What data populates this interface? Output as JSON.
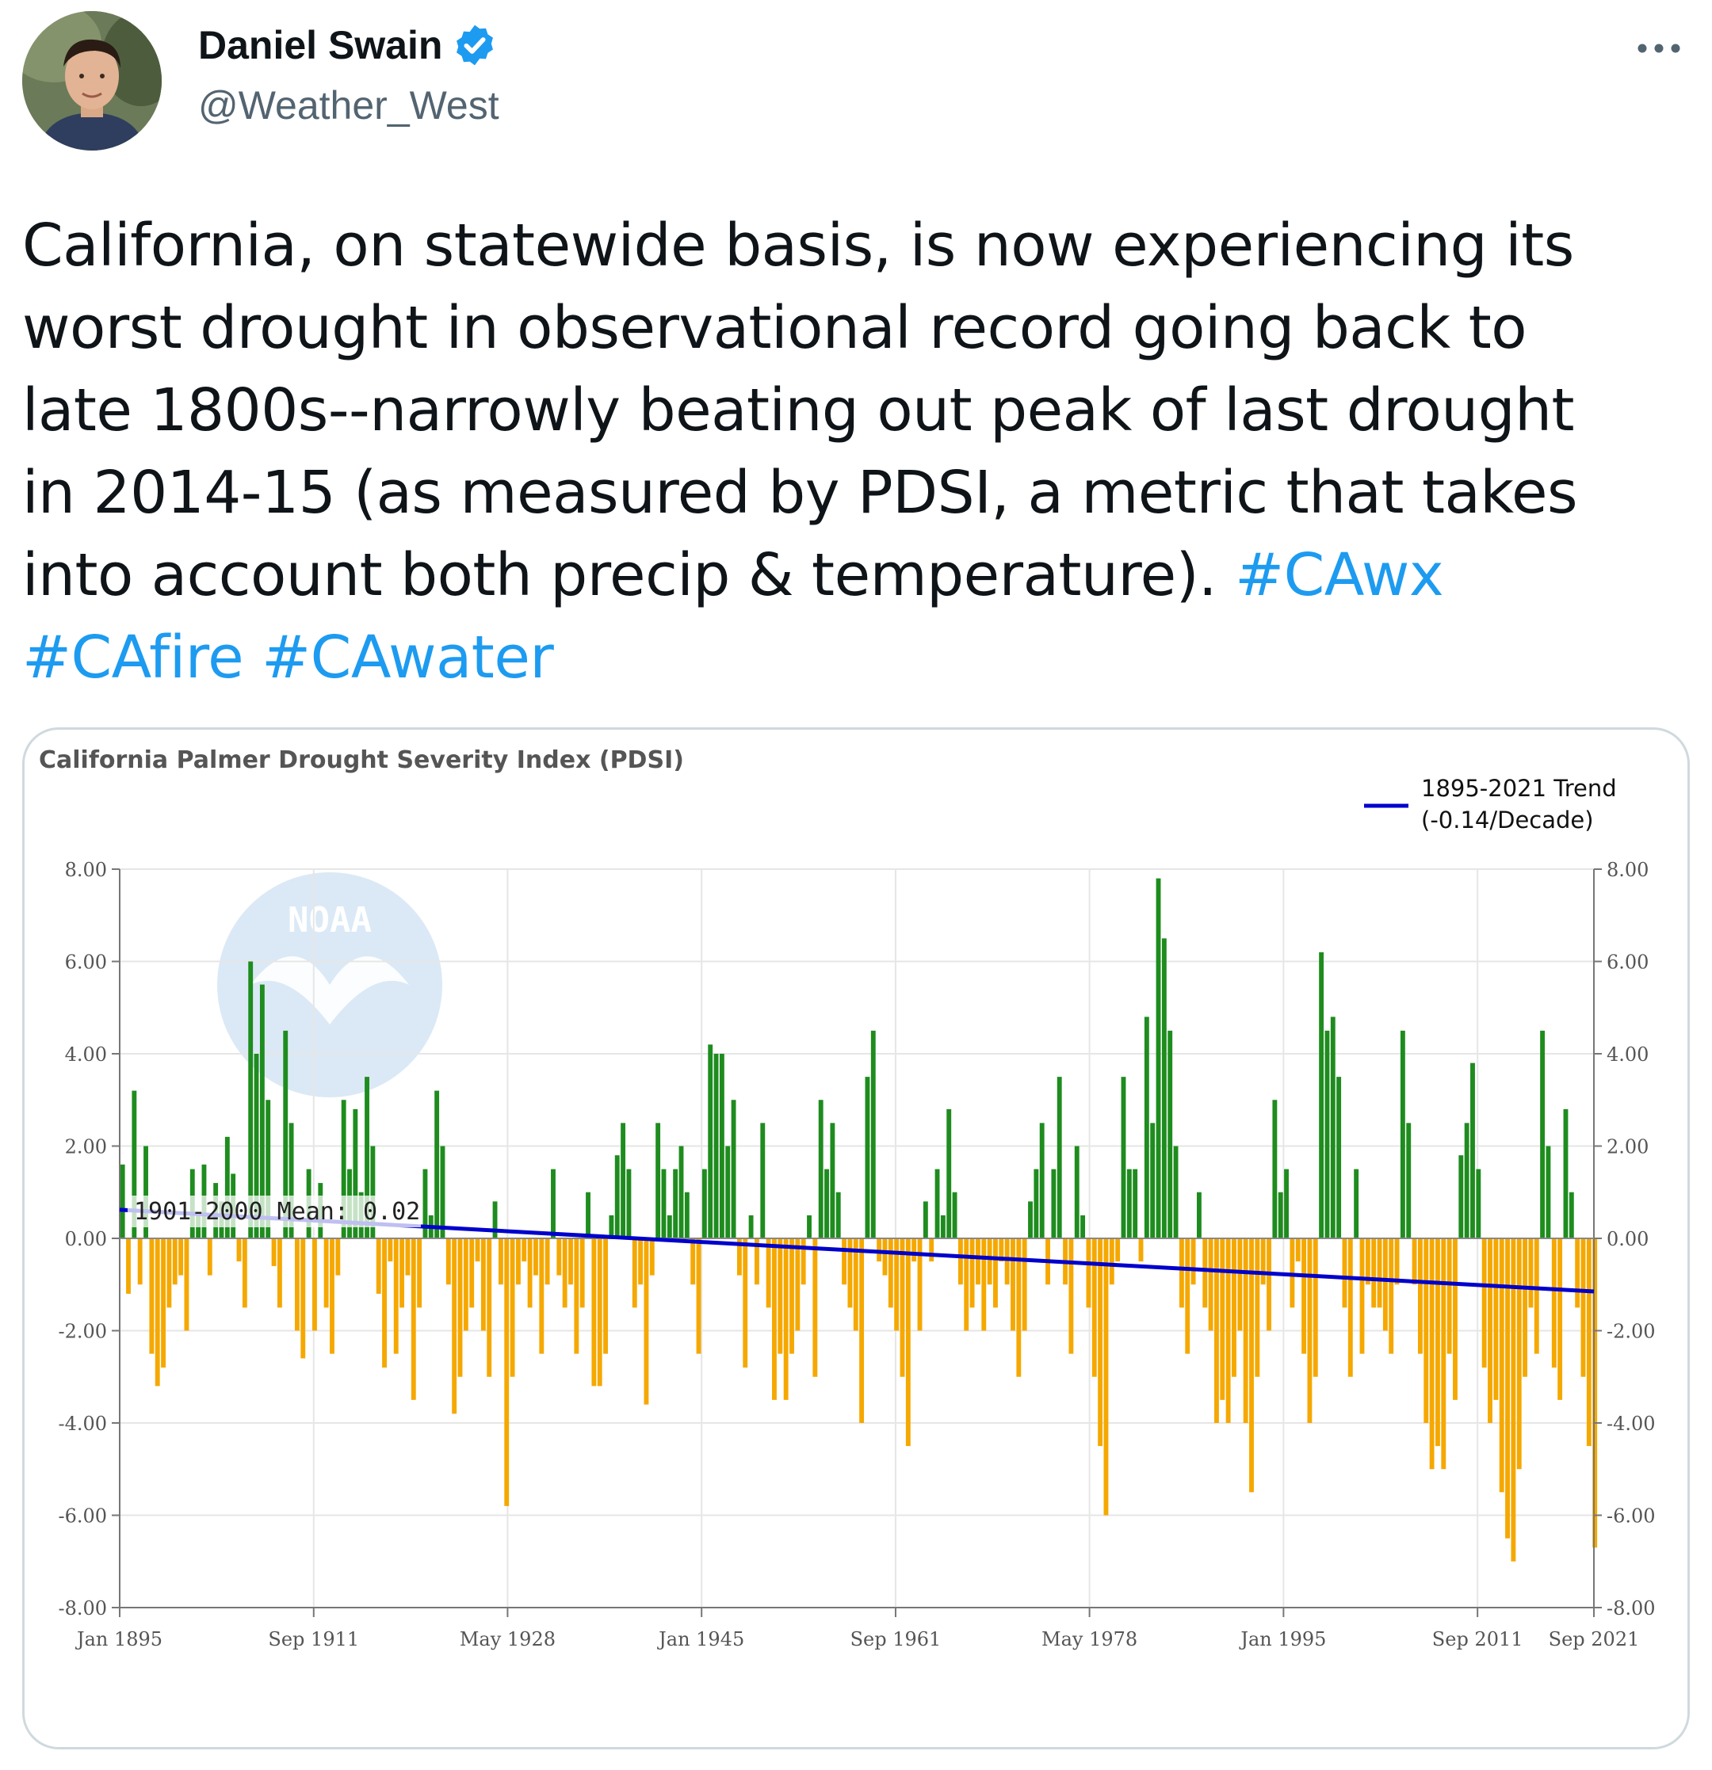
{
  "tweet": {
    "author_name": "Daniel Swain",
    "author_handle": "@Weather_West",
    "verified_icon": "verified-badge-icon",
    "more_icon": "more-horizontal-icon",
    "text_lines": [
      "California, on statewide basis, is now experiencing its",
      "worst drought in observational record going back to",
      "late 1800s--narrowly beating out peak of last drought",
      "in 2014-15 (as measured by PDSI, a metric that takes",
      "into account both precip & temperature). "
    ],
    "hashtags": [
      "#CAwx",
      "#CAfire",
      "#CAwater"
    ],
    "accent_color": "#1d9bf0"
  },
  "chart": {
    "title": "California Palmer Drought Severity Index (PDSI)",
    "legend_line1": "1895-2021 Trend",
    "legend_line2": "(-0.14/Decade)",
    "mean_label": "1901-2000 Mean: 0.02",
    "watermark": "NOAA",
    "y_ticks": [
      "8.00",
      "6.00",
      "4.00",
      "2.00",
      "0.00",
      "-2.00",
      "-4.00",
      "-6.00",
      "-8.00"
    ],
    "x_ticks": [
      "Jan 1895",
      "Sep 1911",
      "May 1928",
      "Jan 1945",
      "Sep 1961",
      "May 1978",
      "Jan 1995",
      "Sep 2011",
      "Sep 2021"
    ]
  },
  "chart_data": {
    "type": "bar",
    "title": "California Palmer Drought Severity Index (PDSI)",
    "ylim": [
      -8,
      8
    ],
    "x_tick_years": [
      1895,
      1911.67,
      1928.33,
      1945,
      1961.67,
      1978.33,
      1995,
      2011.67,
      2021.67
    ],
    "colors": {
      "positive": "#1e8c1e",
      "negative": "#f5a800",
      "trend": "#0000cc"
    },
    "trend": {
      "name": "1895-2021 Trend",
      "rate_per_decade": -0.14,
      "start_value": 0.62,
      "end_value": -1.15
    },
    "mean_1901_2000": 0.02,
    "series": [
      {
        "name": "PDSI",
        "x": [
          1895.0,
          1895.5,
          1896.0,
          1896.5,
          1897.0,
          1897.5,
          1898.0,
          1898.5,
          1899.0,
          1899.5,
          1900.0,
          1900.5,
          1901.0,
          1901.5,
          1902.0,
          1902.5,
          1903.0,
          1903.5,
          1904.0,
          1904.5,
          1905.0,
          1905.5,
          1906.0,
          1906.5,
          1907.0,
          1907.5,
          1908.0,
          1908.5,
          1909.0,
          1909.5,
          1910.0,
          1910.5,
          1911.0,
          1911.5,
          1912.0,
          1912.5,
          1913.0,
          1913.5,
          1914.0,
          1914.5,
          1915.0,
          1915.5,
          1916.0,
          1916.5,
          1917.0,
          1917.5,
          1918.0,
          1918.5,
          1919.0,
          1919.5,
          1920.0,
          1920.5,
          1921.0,
          1921.5,
          1922.0,
          1922.5,
          1923.0,
          1923.5,
          1924.0,
          1924.5,
          1925.0,
          1925.5,
          1926.0,
          1926.5,
          1927.0,
          1927.5,
          1928.0,
          1928.5,
          1929.0,
          1929.5,
          1930.0,
          1930.5,
          1931.0,
          1931.5,
          1932.0,
          1932.5,
          1933.0,
          1933.5,
          1934.0,
          1934.5,
          1935.0,
          1935.5,
          1936.0,
          1936.5,
          1937.0,
          1937.5,
          1938.0,
          1938.5,
          1939.0,
          1939.5,
          1940.0,
          1940.5,
          1941.0,
          1941.5,
          1942.0,
          1942.5,
          1943.0,
          1943.5,
          1944.0,
          1944.5,
          1945.0,
          1945.5,
          1946.0,
          1946.5,
          1947.0,
          1947.5,
          1948.0,
          1948.5,
          1949.0,
          1949.5,
          1950.0,
          1950.5,
          1951.0,
          1951.5,
          1952.0,
          1952.5,
          1953.0,
          1953.5,
          1954.0,
          1954.5,
          1955.0,
          1955.5,
          1956.0,
          1956.5,
          1957.0,
          1957.5,
          1958.0,
          1958.5,
          1959.0,
          1959.5,
          1960.0,
          1960.5,
          1961.0,
          1961.5,
          1962.0,
          1962.5,
          1963.0,
          1963.5,
          1964.0,
          1964.5,
          1965.0,
          1965.5,
          1966.0,
          1966.5,
          1967.0,
          1967.5,
          1968.0,
          1968.5,
          1969.0,
          1969.5,
          1970.0,
          1970.5,
          1971.0,
          1971.5,
          1972.0,
          1972.5,
          1973.0,
          1973.5,
          1974.0,
          1974.5,
          1975.0,
          1975.5,
          1976.0,
          1976.5,
          1977.0,
          1977.5,
          1978.0,
          1978.5,
          1979.0,
          1979.5,
          1980.0,
          1980.5,
          1981.0,
          1981.5,
          1982.0,
          1982.5,
          1983.0,
          1983.5,
          1984.0,
          1984.5,
          1985.0,
          1985.5,
          1986.0,
          1986.5,
          1987.0,
          1987.5,
          1988.0,
          1988.5,
          1989.0,
          1989.5,
          1990.0,
          1990.5,
          1991.0,
          1991.5,
          1992.0,
          1992.5,
          1993.0,
          1993.5,
          1994.0,
          1994.5,
          1995.0,
          1995.5,
          1996.0,
          1996.5,
          1997.0,
          1997.5,
          1998.0,
          1998.5,
          1999.0,
          1999.5,
          2000.0,
          2000.5,
          2001.0,
          2001.5,
          2002.0,
          2002.5,
          2003.0,
          2003.5,
          2004.0,
          2004.5,
          2005.0,
          2005.5,
          2006.0,
          2006.5,
          2007.0,
          2007.5,
          2008.0,
          2008.5,
          2009.0,
          2009.5,
          2010.0,
          2010.5,
          2011.0,
          2011.5,
          2012.0,
          2012.5,
          2013.0,
          2013.5,
          2014.0,
          2014.5,
          2015.0,
          2015.5,
          2016.0,
          2016.5,
          2017.0,
          2017.5,
          2018.0,
          2018.5,
          2019.0,
          2019.5,
          2020.0,
          2020.5,
          2021.0,
          2021.5
        ],
        "values": [
          1.6,
          -1.2,
          3.2,
          -1.0,
          2.0,
          -2.5,
          -3.2,
          -2.8,
          -1.5,
          -1.0,
          -0.8,
          -2.0,
          1.5,
          0.5,
          1.6,
          -0.8,
          1.2,
          0.8,
          2.2,
          1.4,
          -0.5,
          -1.5,
          6.0,
          4.0,
          5.5,
          3.0,
          -0.6,
          -1.5,
          4.5,
          2.5,
          -2.0,
          -2.6,
          1.5,
          -2.0,
          1.2,
          -1.5,
          -2.5,
          -0.8,
          3.0,
          1.5,
          2.8,
          1.0,
          3.5,
          2.0,
          -1.2,
          -2.8,
          -0.5,
          -2.5,
          -1.5,
          -0.8,
          -3.5,
          -1.5,
          1.5,
          0.5,
          3.2,
          2.0,
          -1.0,
          -3.8,
          -3.0,
          -2.0,
          -1.5,
          -0.5,
          -2.0,
          -3.0,
          0.8,
          -1.0,
          -5.8,
          -3.0,
          -1.0,
          -0.5,
          -1.5,
          -0.8,
          -2.5,
          -1.0,
          1.5,
          -0.8,
          -1.5,
          -1.0,
          -2.5,
          -1.5,
          1.0,
          -3.2,
          -3.2,
          -2.5,
          0.5,
          1.8,
          2.5,
          1.5,
          -1.5,
          -1.0,
          -3.6,
          -0.8,
          2.5,
          1.5,
          0.5,
          1.5,
          2.0,
          1.0,
          -1.0,
          -2.5,
          1.5,
          4.2,
          4.0,
          4.0,
          2.0,
          3.0,
          -0.8,
          -2.8,
          0.5,
          -1.0,
          2.5,
          -1.5,
          -3.5,
          -2.5,
          -3.5,
          -2.5,
          -2.0,
          -1.0,
          0.5,
          -3.0,
          3.0,
          1.5,
          2.5,
          1.0,
          -1.0,
          -1.5,
          -2.0,
          -4.0,
          3.5,
          4.5,
          -0.5,
          -0.8,
          -1.5,
          -2.0,
          -3.0,
          -4.5,
          -0.5,
          -2.0,
          0.8,
          -0.5,
          1.5,
          0.5,
          2.8,
          1.0,
          -1.0,
          -2.0,
          -1.5,
          -1.0,
          -2.0,
          -1.0,
          -1.5,
          -0.5,
          -1.0,
          -2.0,
          -3.0,
          -2.0,
          0.8,
          1.5,
          2.5,
          -1.0,
          1.5,
          3.5,
          -1.0,
          -2.5,
          2.0,
          0.5,
          -1.5,
          -3.0,
          -4.5,
          -6.0,
          -1.0,
          -0.5,
          3.5,
          1.5,
          1.5,
          -0.5,
          4.8,
          2.5,
          7.8,
          6.5,
          4.5,
          2.0,
          -1.5,
          -2.5,
          -1.0,
          1.0,
          -1.5,
          -2.0,
          -4.0,
          -3.5,
          -4.0,
          -3.0,
          -2.0,
          -4.0,
          -5.5,
          -3.0,
          -1.0,
          -2.0,
          3.0,
          1.0,
          1.5,
          -1.5,
          -0.5,
          -2.5,
          -4.0,
          -3.0,
          6.2,
          4.5,
          4.8,
          3.5,
          -1.5,
          -3.0,
          1.5,
          -2.5,
          -1.0,
          -1.5,
          -1.5,
          -2.0,
          -2.5,
          -1.0,
          4.5,
          2.5,
          -1.0,
          -2.5,
          -4.0,
          -5.0,
          -4.5,
          -5.0,
          -2.5,
          -3.5,
          1.8,
          2.5,
          3.8,
          1.5,
          -2.8,
          -4.0,
          -3.5,
          -5.5,
          -6.5,
          -7.0,
          -5.0,
          -3.0,
          -1.5,
          -2.5,
          4.5,
          2.0,
          -2.8,
          -3.5,
          2.8,
          1.0,
          -1.5,
          -3.0,
          -4.5,
          -6.7
        ]
      }
    ]
  }
}
